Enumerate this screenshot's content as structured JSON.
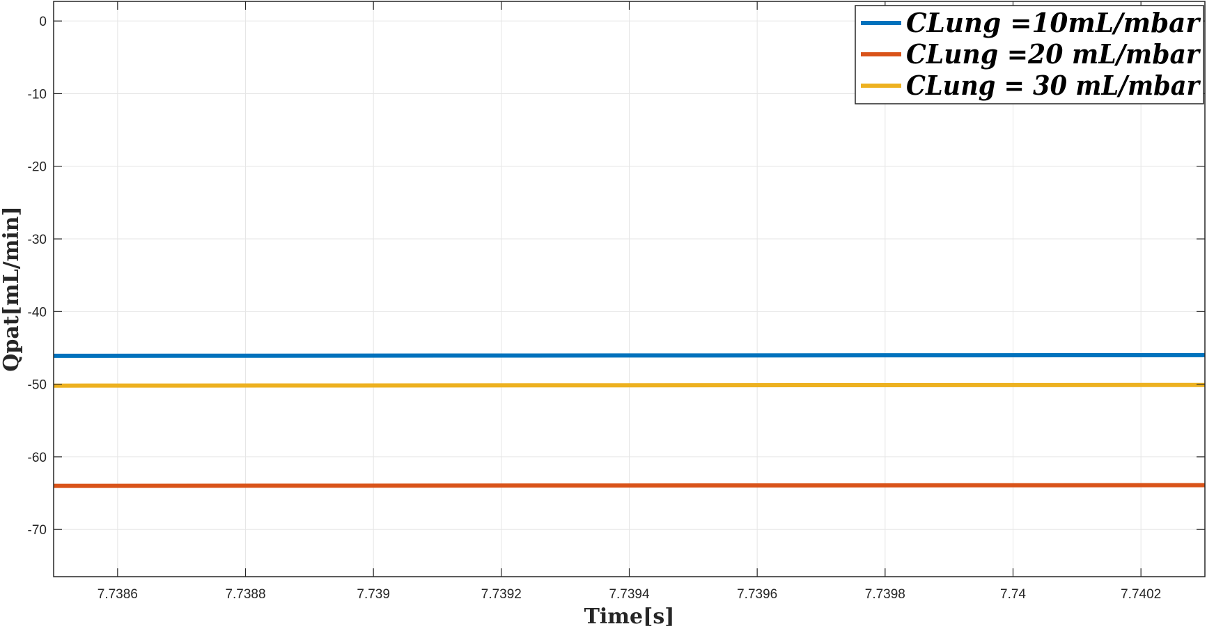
{
  "chart_data": {
    "type": "line",
    "title": "",
    "xlabel": "Time[s]",
    "ylabel": "Qpat[mL/min]",
    "xlim": [
      7.7385,
      7.7403
    ],
    "ylim": [
      -76.5,
      2.7
    ],
    "x_ticks": [
      7.7386,
      7.7388,
      7.739,
      7.7392,
      7.7394,
      7.7396,
      7.7398,
      7.74,
      7.7402
    ],
    "x_tick_labels": [
      "7.7386",
      "7.7388",
      "7.739",
      "7.7392",
      "7.7394",
      "7.7396",
      "7.7398",
      "7.74",
      "7.7402"
    ],
    "y_ticks": [
      0,
      -10,
      -20,
      -30,
      -40,
      -50,
      -60,
      -70
    ],
    "y_tick_labels": [
      "0",
      "-10",
      "-20",
      "-30",
      "-40",
      "-50",
      "-60",
      "-70"
    ],
    "grid": true,
    "legend_position": "top-right",
    "x": [
      7.7385,
      7.7403
    ],
    "series": [
      {
        "name": "CLung =10mL/mbar",
        "color": "#0072BD",
        "values": [
          -46.1,
          -46.0
        ]
      },
      {
        "name": "CLung =20 mL/mbar",
        "color": "#D95319",
        "values": [
          -64.0,
          -63.9
        ]
      },
      {
        "name": "CLung = 30 mL/mbar",
        "color": "#EDB120",
        "values": [
          -50.2,
          -50.1
        ]
      }
    ]
  }
}
